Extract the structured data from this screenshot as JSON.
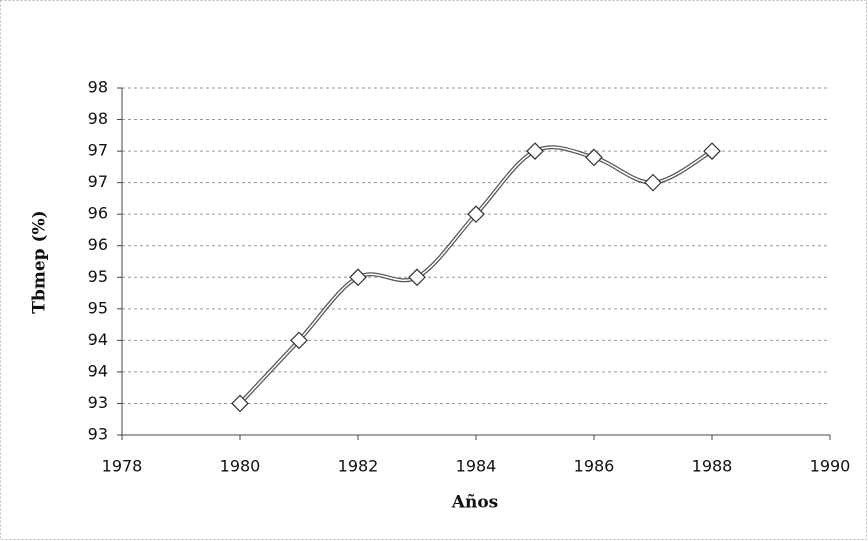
{
  "chart_data": {
    "type": "line",
    "x_label": "Años",
    "y_label": "Tbmep (%)",
    "x": [
      1980,
      1981,
      1982,
      1983,
      1984,
      1985,
      1986,
      1987,
      1988
    ],
    "series": [
      {
        "name": "Tbmep",
        "color": "#555555",
        "values": [
          93,
          94,
          95,
          95,
          96,
          97,
          96.9,
          96.5,
          97
        ]
      }
    ],
    "xlim": [
      1978,
      1990
    ],
    "xticks": [
      1978,
      1980,
      1982,
      1984,
      1986,
      1988,
      1990
    ],
    "ylim": [
      92.5,
      98
    ],
    "yticks": [
      {
        "value": 92.5,
        "label": "93"
      },
      93,
      {
        "value": 93.5,
        "label": "94"
      },
      94,
      {
        "value": 94.5,
        "label": "95"
      },
      95,
      {
        "value": 95.5,
        "label": "96"
      },
      96,
      {
        "value": 96.5,
        "label": "97"
      },
      97,
      {
        "value": 97.5,
        "label": "98"
      },
      98
    ],
    "grid": true,
    "smooth": true
  }
}
